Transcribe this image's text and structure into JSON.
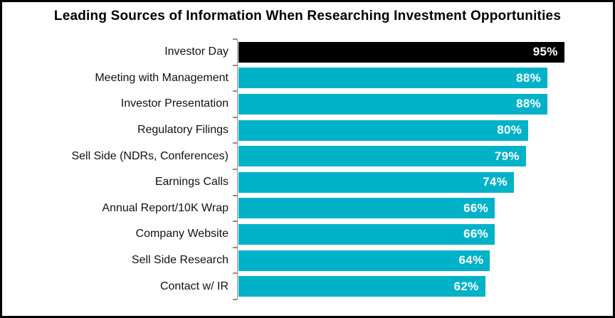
{
  "chart_data": {
    "type": "bar",
    "orientation": "horizontal",
    "title": "Leading Sources of Information When Researching Investment Opportunities",
    "categories": [
      "Investor Day",
      "Meeting with Management",
      "Investor Presentation",
      "Regulatory Filings",
      "Sell Side (NDRs, Conferences)",
      "Earnings Calls",
      "Annual Report/10K Wrap",
      "Company Website",
      "Sell Side Research",
      "Contact w/ IR"
    ],
    "values": [
      95,
      88,
      88,
      80,
      79,
      74,
      66,
      66,
      64,
      62
    ],
    "value_suffix": "%",
    "value_labels": [
      "95%",
      "88%",
      "88%",
      "80%",
      "79%",
      "74%",
      "66%",
      "66%",
      "64%",
      "62%"
    ],
    "highlight_index": 0,
    "xlim": [
      -41,
      115
    ],
    "grid": false,
    "legend": "none",
    "colors": {
      "bar": "#00b2c8",
      "highlight_bar": "#000000",
      "value_text": "#ffffff",
      "category_text": "#111111",
      "axis": "#8c8c8c",
      "frame_border": "#000000",
      "title_text": "#000000",
      "background": "#ffffff"
    }
  }
}
